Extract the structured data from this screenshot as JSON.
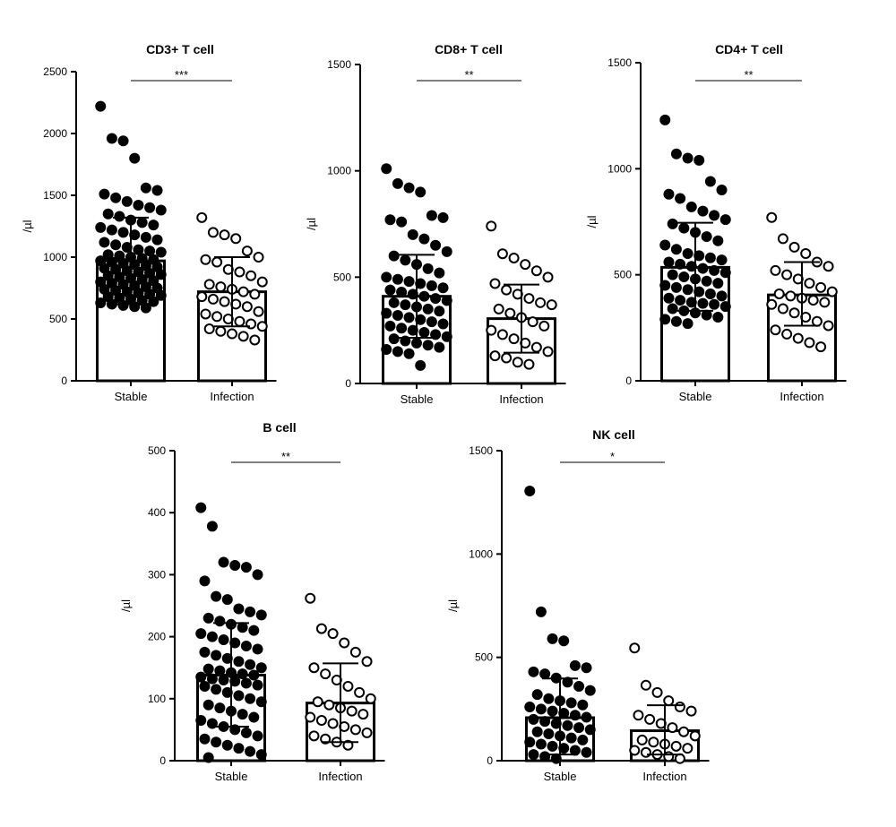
{
  "chart_data": [
    {
      "type": "bar",
      "title": "CD3+ T cell",
      "ylabel": "/µl",
      "ylim": [
        0,
        2500
      ],
      "yticks": [
        0,
        500,
        1000,
        1500,
        2000,
        2500
      ],
      "categories": [
        "Stable",
        "Infection"
      ],
      "means": [
        970,
        720
      ],
      "error_high": [
        1320,
        1000
      ],
      "error_low": [
        620,
        440
      ],
      "significance": "***",
      "points": [
        [
          2220,
          1960,
          1940,
          1800,
          1560,
          1540,
          1510,
          1480,
          1450,
          1420,
          1400,
          1380,
          1350,
          1330,
          1300,
          1280,
          1260,
          1240,
          1220,
          1200,
          1180,
          1160,
          1140,
          1120,
          1100,
          1080,
          1060,
          1050,
          1040,
          1020,
          1010,
          1000,
          990,
          980,
          970,
          960,
          950,
          940,
          930,
          920,
          910,
          900,
          890,
          880,
          870,
          860,
          850,
          840,
          830,
          820,
          810,
          800,
          790,
          780,
          770,
          760,
          750,
          740,
          730,
          720,
          710,
          700,
          690,
          680,
          670,
          660,
          650,
          640,
          630,
          620,
          610,
          600,
          590
        ],
        [
          1320,
          1200,
          1180,
          1150,
          1050,
          1000,
          980,
          960,
          900,
          880,
          850,
          800,
          780,
          760,
          740,
          720,
          700,
          680,
          660,
          640,
          620,
          600,
          560,
          540,
          520,
          500,
          480,
          460,
          440,
          420,
          400,
          380,
          360,
          330
        ]
      ]
    },
    {
      "type": "bar",
      "title": "CD8+ T cell",
      "ylabel": "/µl",
      "ylim": [
        0,
        1500
      ],
      "yticks": [
        0,
        500,
        1000,
        1500
      ],
      "categories": [
        "Stable",
        "Infection"
      ],
      "means": [
        410,
        305
      ],
      "error_high": [
        605,
        465
      ],
      "error_low": [
        215,
        145
      ],
      "significance": "**",
      "points": [
        [
          1010,
          940,
          920,
          900,
          790,
          780,
          770,
          760,
          700,
          680,
          650,
          620,
          600,
          580,
          560,
          540,
          520,
          500,
          490,
          480,
          470,
          460,
          450,
          440,
          430,
          420,
          410,
          400,
          390,
          380,
          370,
          360,
          350,
          340,
          330,
          320,
          310,
          300,
          290,
          280,
          270,
          260,
          250,
          240,
          230,
          220,
          210,
          200,
          190,
          180,
          170,
          160,
          150,
          140,
          85
        ],
        [
          740,
          610,
          590,
          560,
          530,
          500,
          470,
          440,
          420,
          400,
          380,
          370,
          350,
          330,
          310,
          290,
          270,
          250,
          230,
          210,
          190,
          170,
          150,
          130,
          120,
          100,
          90
        ]
      ]
    },
    {
      "type": "bar",
      "title": "CD4+ T cell",
      "ylabel": "/µl",
      "ylim": [
        0,
        1500
      ],
      "yticks": [
        0,
        500,
        1000,
        1500
      ],
      "categories": [
        "Stable",
        "Infection"
      ],
      "means": [
        535,
        405
      ],
      "error_high": [
        745,
        560
      ],
      "error_low": [
        330,
        260
      ],
      "significance": "**",
      "points": [
        [
          1230,
          1070,
          1050,
          1040,
          940,
          900,
          880,
          860,
          820,
          800,
          780,
          760,
          740,
          720,
          700,
          680,
          660,
          640,
          620,
          600,
          590,
          580,
          570,
          560,
          550,
          540,
          530,
          520,
          510,
          500,
          490,
          480,
          470,
          460,
          450,
          440,
          430,
          420,
          410,
          400,
          390,
          380,
          370,
          365,
          360,
          350,
          340,
          330,
          320,
          310,
          300,
          290,
          280,
          270
        ],
        [
          770,
          670,
          630,
          600,
          560,
          540,
          520,
          500,
          480,
          460,
          440,
          420,
          410,
          400,
          390,
          380,
          370,
          360,
          340,
          320,
          300,
          280,
          260,
          240,
          220,
          200,
          180,
          160
        ]
      ]
    },
    {
      "type": "bar",
      "title": "B cell",
      "ylabel": "/µl",
      "ylim": [
        0,
        500
      ],
      "yticks": [
        0,
        100,
        200,
        300,
        400,
        500
      ],
      "categories": [
        "Stable",
        "Infection"
      ],
      "means": [
        138,
        93
      ],
      "error_high": [
        222,
        157
      ],
      "error_low": [
        55,
        30
      ],
      "significance": "**",
      "points": [
        [
          408,
          378,
          320,
          315,
          312,
          300,
          290,
          265,
          260,
          245,
          240,
          235,
          230,
          225,
          220,
          215,
          210,
          205,
          200,
          195,
          190,
          185,
          180,
          175,
          170,
          165,
          160,
          155,
          150,
          148,
          145,
          142,
          140,
          138,
          135,
          132,
          130,
          128,
          125,
          122,
          120,
          115,
          110,
          105,
          100,
          95,
          90,
          85,
          80,
          75,
          70,
          65,
          60,
          55,
          50,
          45,
          40,
          35,
          30,
          25,
          20,
          15,
          10,
          5
        ],
        [
          262,
          213,
          205,
          190,
          175,
          160,
          150,
          140,
          130,
          120,
          110,
          100,
          95,
          90,
          85,
          80,
          75,
          70,
          65,
          60,
          55,
          50,
          45,
          40,
          35,
          30,
          25
        ]
      ]
    },
    {
      "type": "bar",
      "title": "NK cell",
      "ylabel": "/µl",
      "ylim": [
        0,
        1500
      ],
      "yticks": [
        0,
        500,
        1000,
        1500
      ],
      "categories": [
        "Stable",
        "Infection"
      ],
      "means": [
        208,
        145
      ],
      "error_high": [
        398,
        268
      ],
      "error_low": [
        30,
        30
      ],
      "significance": "*",
      "points": [
        [
          1305,
          720,
          590,
          580,
          460,
          450,
          430,
          420,
          400,
          380,
          360,
          340,
          320,
          300,
          290,
          280,
          270,
          260,
          250,
          240,
          230,
          220,
          210,
          200,
          190,
          180,
          170,
          160,
          150,
          140,
          130,
          120,
          110,
          100,
          90,
          80,
          70,
          60,
          50,
          40,
          30,
          20,
          10
        ],
        [
          545,
          365,
          330,
          290,
          260,
          240,
          220,
          200,
          180,
          160,
          140,
          120,
          100,
          90,
          80,
          70,
          60,
          50,
          40,
          30,
          20,
          10
        ]
      ]
    }
  ]
}
